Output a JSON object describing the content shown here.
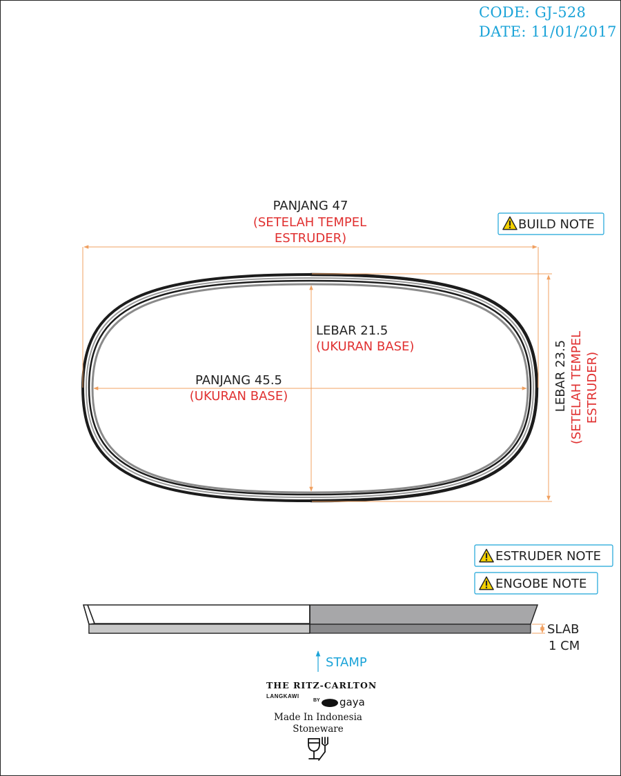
{
  "header": {
    "code": "CODE: GJ-528",
    "date": "DATE: 11/01/2017"
  },
  "notes": {
    "build": "BUILD NOTE",
    "estruder": "ESTRUDER NOTE",
    "engobe": "ENGOBE NOTE"
  },
  "top_view": {
    "length_outer_label": "PANJANG 47",
    "length_outer_note_line1": "(SETELAH TEMPEL",
    "length_outer_note_line2": "ESTRUDER)",
    "width_base_label": "LEBAR 21.5",
    "width_base_note": "(UKURAN BASE)",
    "length_base_label": "PANJANG 45.5",
    "length_base_note": "(UKURAN BASE)",
    "width_outer_label": "LEBAR 23.5",
    "width_outer_note_line1": "(SETELAH TEMPEL",
    "width_outer_note_line2": "ESTRUDER)"
  },
  "side_view": {
    "slab_label_line1": "SLAB",
    "slab_label_line2": "1 CM",
    "stamp_label": "STAMP"
  },
  "stamp": {
    "brand": "THE RITZ-CARLTON",
    "location": "LANGKAWI",
    "by": "BY",
    "maker": "gaya",
    "made_in": "Made In Indonesia",
    "material": "Stoneware"
  },
  "colors": {
    "dimension_line": "#f0a060",
    "note_red": "#e03030",
    "accent_blue": "#1aa3d8",
    "rim_dark": "#222222",
    "base_gray": "#888888"
  },
  "icons": [
    "warning-icon",
    "arrow-up-icon",
    "food-safe-icon"
  ]
}
